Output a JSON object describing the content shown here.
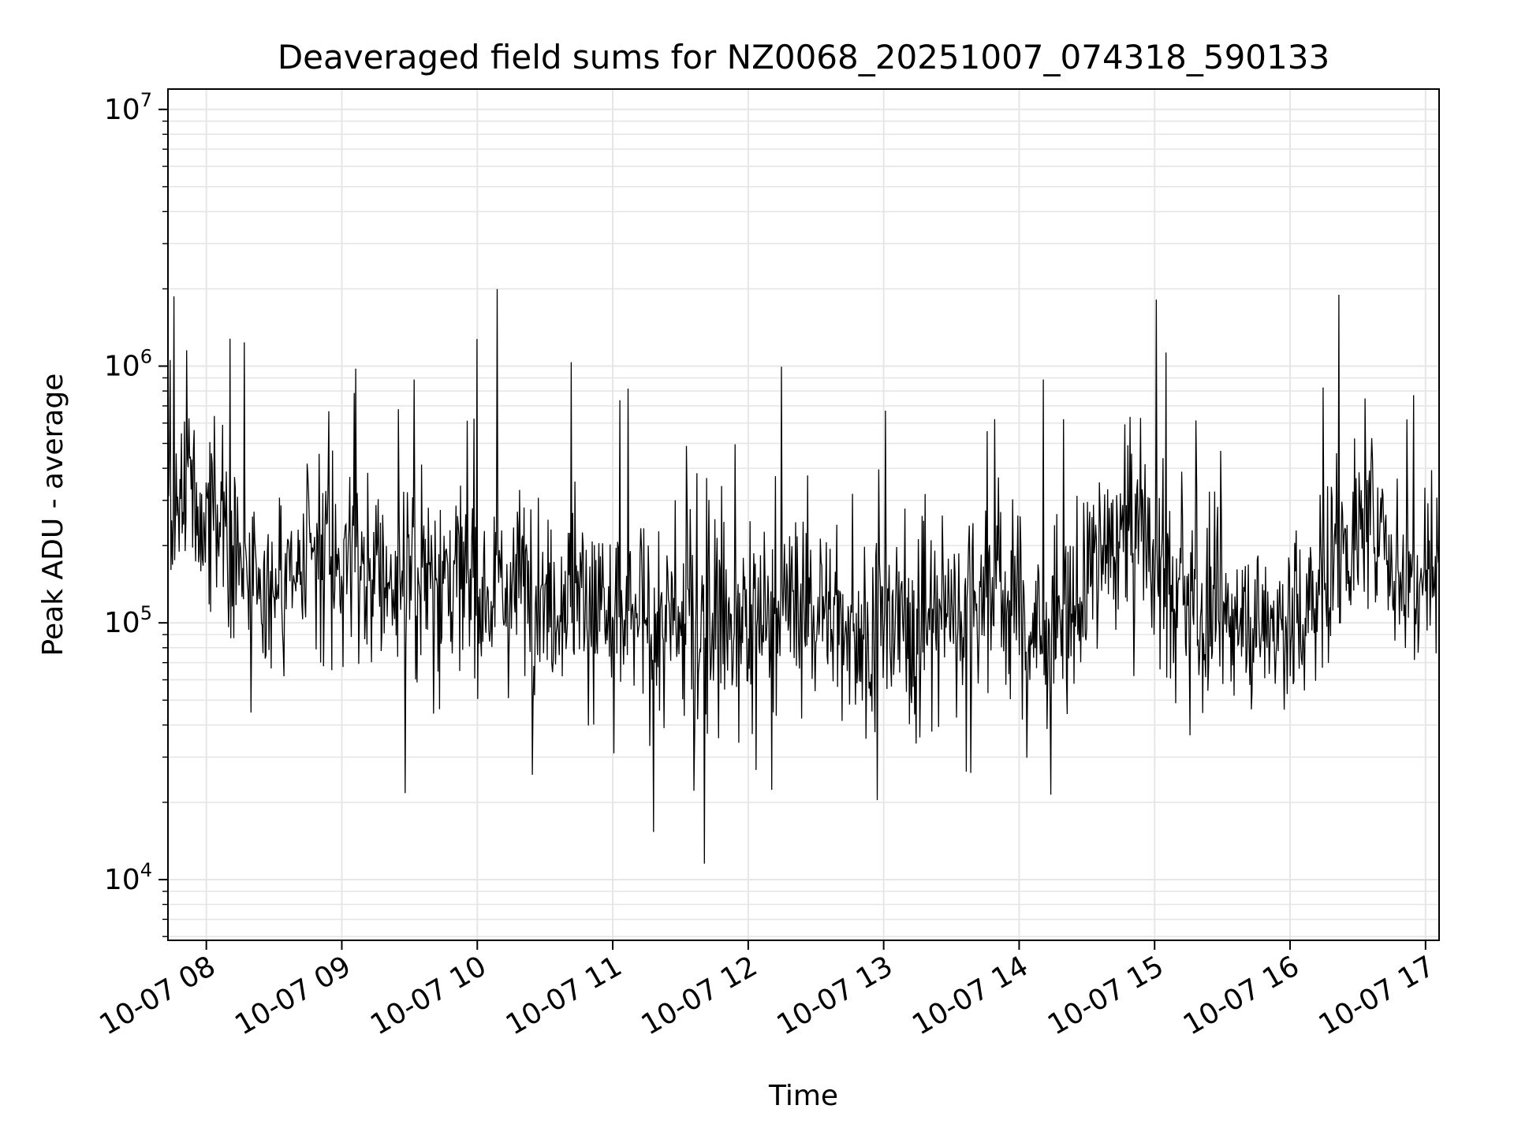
{
  "chart_data": {
    "type": "line",
    "title": "Deaveraged field sums for NZ0068_20251007_074318_590133",
    "xlabel": "Time",
    "ylabel": "Peak ADU - average",
    "x_tick_labels": [
      "10-07 08",
      "10-07 09",
      "10-07 10",
      "10-07 11",
      "10-07 12",
      "10-07 13",
      "10-07 14",
      "10-07 15",
      "10-07 16",
      "10-07 17"
    ],
    "x_ticks": [
      "2025-10-07 08:00",
      "2025-10-07 09:00",
      "2025-10-07 10:00",
      "2025-10-07 11:00",
      "2025-10-07 12:00",
      "2025-10-07 13:00",
      "2025-10-07 14:00",
      "2025-10-07 15:00",
      "2025-10-07 16:00",
      "2025-10-07 17:00"
    ],
    "xlim": [
      "2025-10-07 07:43",
      "2025-10-07 17:06"
    ],
    "y_scale": "log",
    "ylim": [
      5800,
      12000000
    ],
    "y_ticks": [
      10000,
      100000,
      1000000,
      10000000
    ],
    "y_tick_labels": [
      {
        "base": "10",
        "exp": "4"
      },
      {
        "base": "10",
        "exp": "5"
      },
      {
        "base": "10",
        "exp": "6"
      },
      {
        "base": "10",
        "exp": "7"
      }
    ],
    "grid": true,
    "line_color": "#000000",
    "series": [
      {
        "x": [
          "2025-10-07 07:43",
          "2025-10-07 07:53",
          "2025-10-07 08:05",
          "2025-10-07 08:20",
          "2025-10-07 08:35",
          "2025-10-07 08:50",
          "2025-10-07 09:05",
          "2025-10-07 09:20",
          "2025-10-07 09:35",
          "2025-10-07 09:50",
          "2025-10-07 10:05",
          "2025-10-07 10:20",
          "2025-10-07 10:35",
          "2025-10-07 10:50",
          "2025-10-07 11:05",
          "2025-10-07 11:20",
          "2025-10-07 11:35",
          "2025-10-07 11:50",
          "2025-10-07 12:05",
          "2025-10-07 12:20",
          "2025-10-07 12:35",
          "2025-10-07 12:50",
          "2025-10-07 13:05",
          "2025-10-07 13:20",
          "2025-10-07 13:35",
          "2025-10-07 13:50",
          "2025-10-07 14:05",
          "2025-10-07 14:20",
          "2025-10-07 14:35",
          "2025-10-07 14:50",
          "2025-10-07 15:05",
          "2025-10-07 15:20",
          "2025-10-07 15:35",
          "2025-10-07 15:50",
          "2025-10-07 16:05",
          "2025-10-07 16:20",
          "2025-10-07 16:35",
          "2025-10-07 16:50",
          "2025-10-07 17:06"
        ],
        "values": [
          250000,
          350000,
          250000,
          150000,
          140000,
          160000,
          180000,
          150000,
          160000,
          150000,
          140000,
          150000,
          130000,
          120000,
          100000,
          100000,
          90000,
          95000,
          110000,
          120000,
          110000,
          90000,
          100000,
          100000,
          120000,
          140000,
          90000,
          90000,
          180000,
          250000,
          150000,
          100000,
          100000,
          100000,
          100000,
          180000,
          250000,
          150000,
          200000
        ]
      }
    ]
  }
}
